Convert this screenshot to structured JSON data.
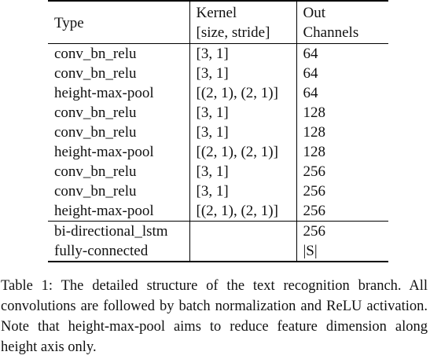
{
  "table": {
    "headers": {
      "type": "Type",
      "kernel_line1": "Kernel",
      "kernel_line2": "[size, stride]",
      "out_line1": "Out",
      "out_line2": "Channels"
    },
    "rows": [
      {
        "type": "conv_bn_relu",
        "kernel": "[3, 1]",
        "out": "64"
      },
      {
        "type": "conv_bn_relu",
        "kernel": "[3, 1]",
        "out": "64"
      },
      {
        "type": "height-max-pool",
        "kernel": "[(2, 1), (2, 1)]",
        "out": "64"
      },
      {
        "type": "conv_bn_relu",
        "kernel": "[3, 1]",
        "out": "128"
      },
      {
        "type": "conv_bn_relu",
        "kernel": "[3, 1]",
        "out": "128"
      },
      {
        "type": "height-max-pool",
        "kernel": "[(2, 1), (2, 1)]",
        "out": "128"
      },
      {
        "type": "conv_bn_relu",
        "kernel": "[3, 1]",
        "out": "256"
      },
      {
        "type": "conv_bn_relu",
        "kernel": "[3, 1]",
        "out": "256"
      },
      {
        "type": "height-max-pool",
        "kernel": "[(2, 1), (2, 1)]",
        "out": "256"
      },
      {
        "type": "bi-directional_lstm",
        "kernel": "",
        "out": "256"
      },
      {
        "type": "fully-connected",
        "kernel": "",
        "out": "|S|"
      }
    ]
  },
  "caption": "Table 1: The detailed structure of the text recognition branch. All convolutions are followed by batch normalization and ReLU activation. Note that height-max-pool aims to reduce feature dimension along height axis only."
}
